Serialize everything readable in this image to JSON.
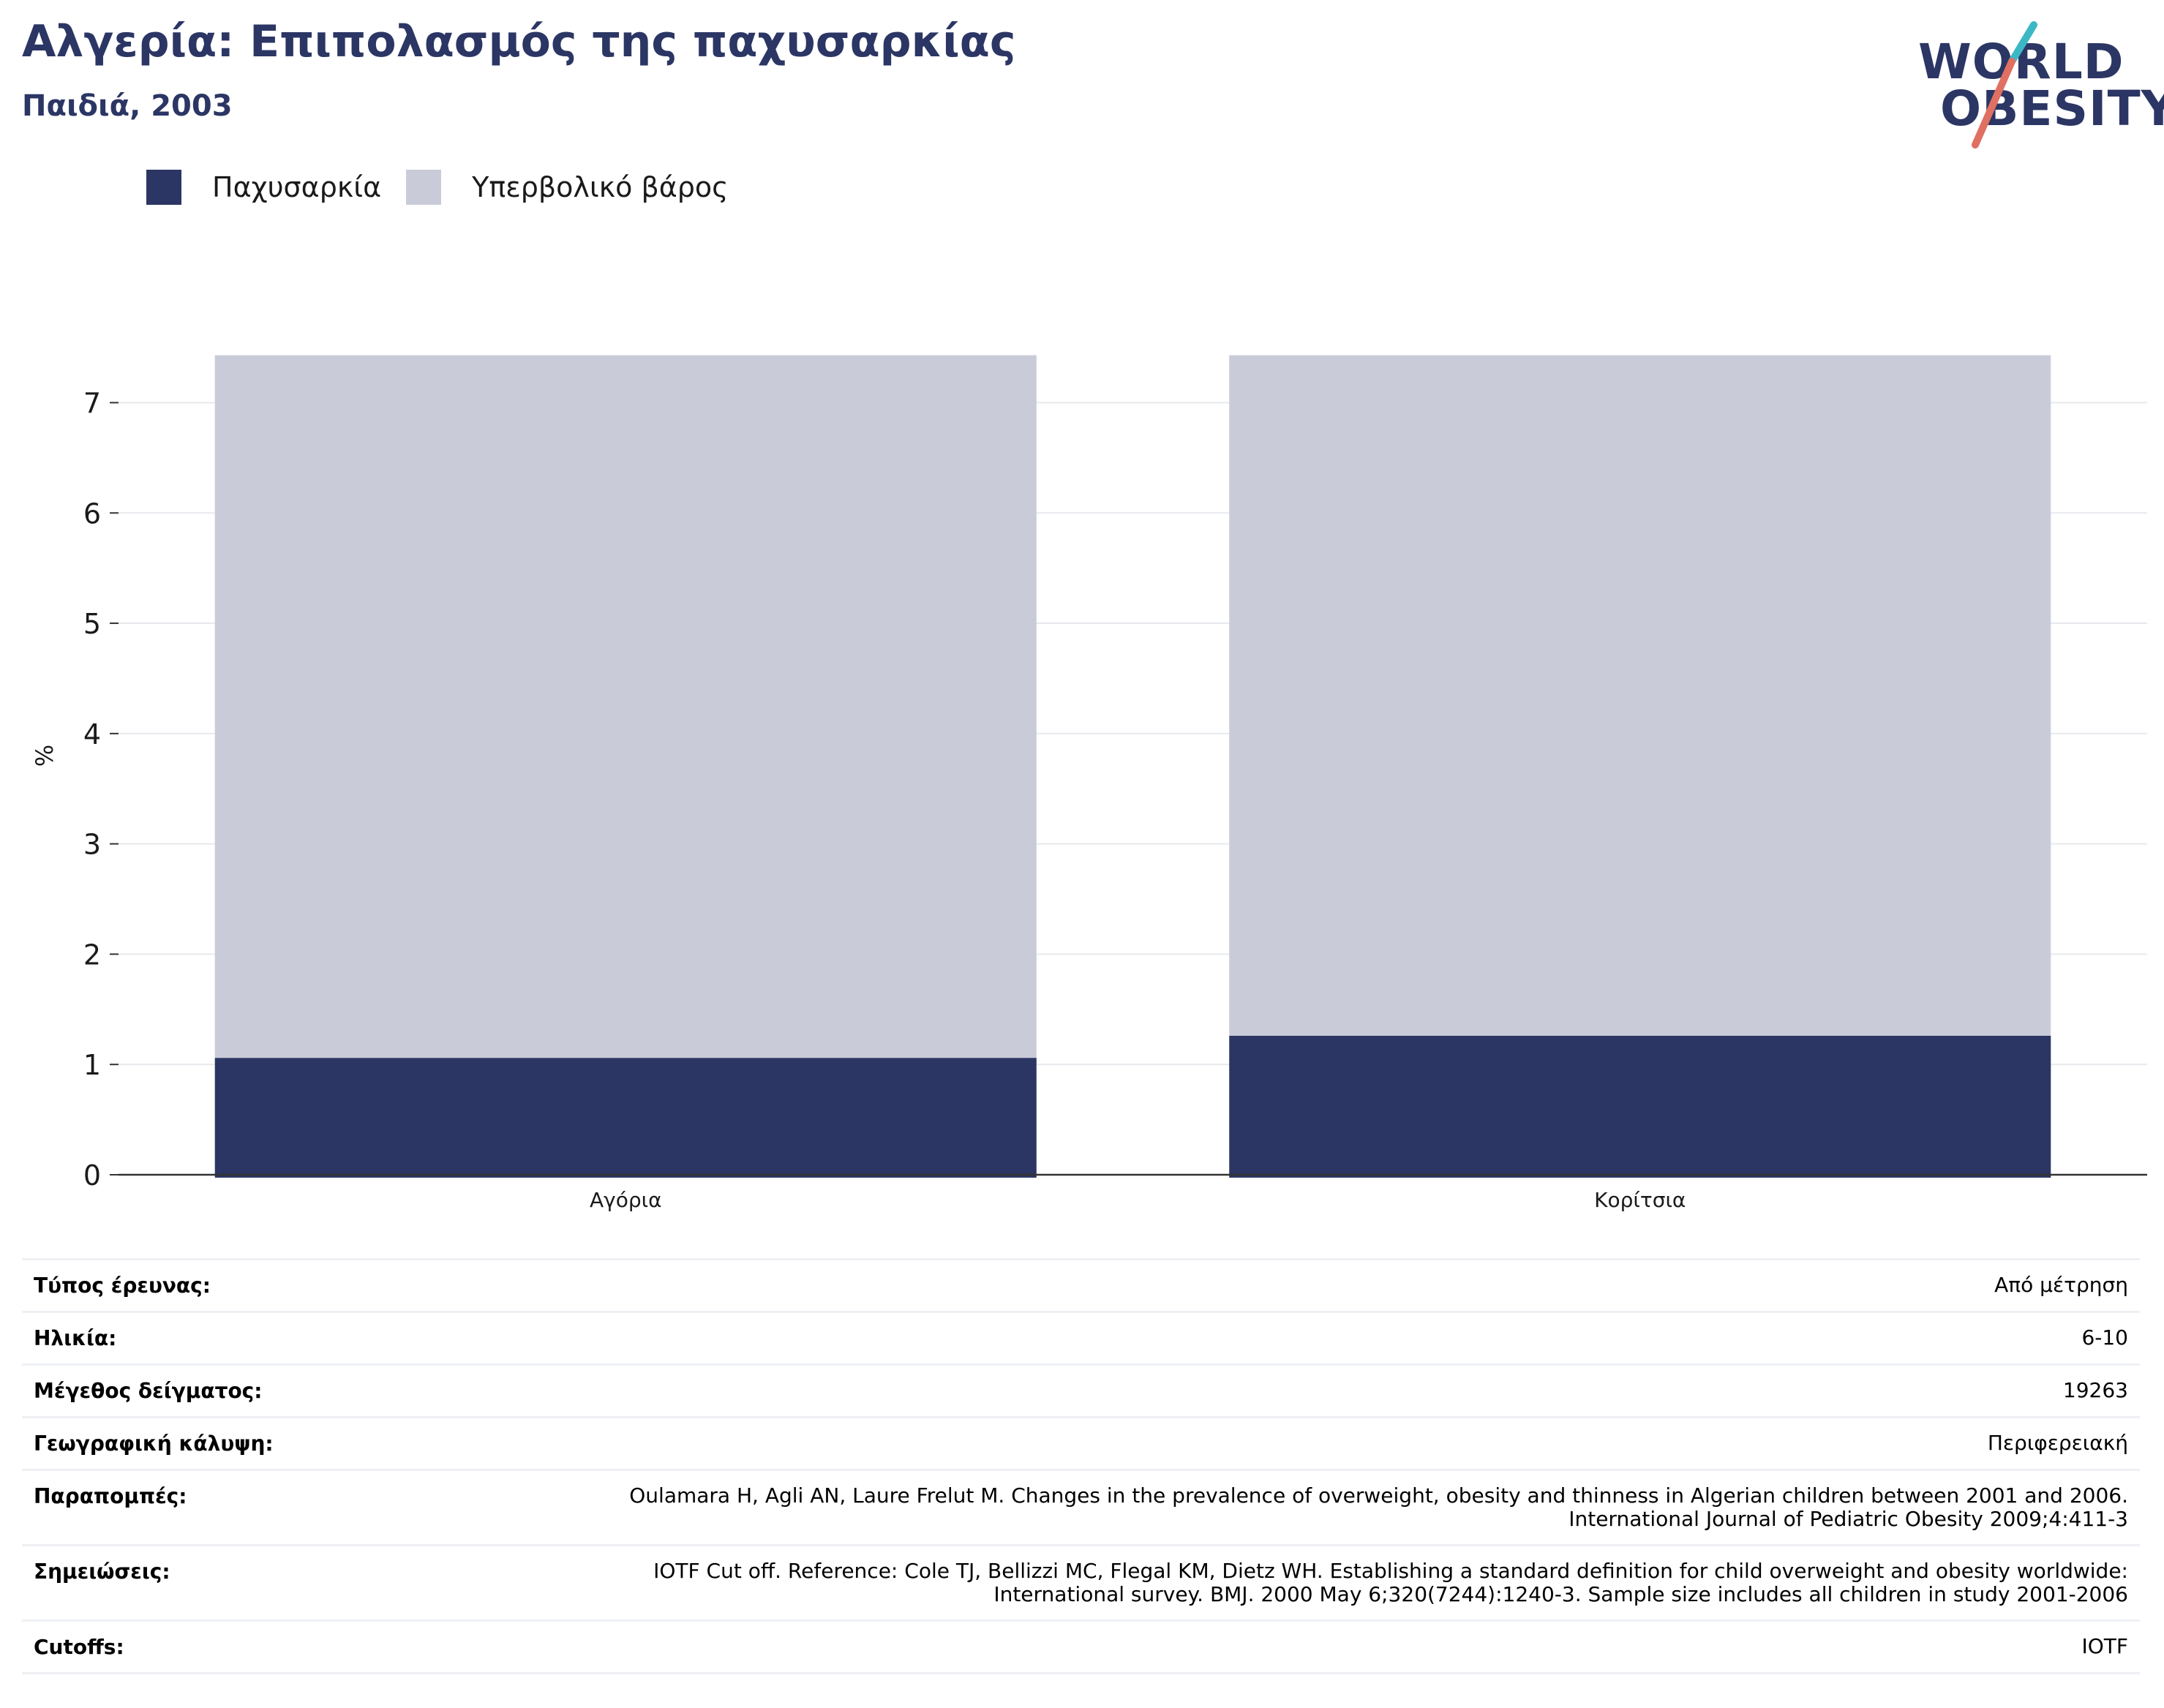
{
  "header": {
    "title": "Αλγερία: Επιπολασμός της παχυσαρκίας",
    "subtitle": "Παιδιά, 2003"
  },
  "logo": {
    "line1": "WORLD",
    "line2": "OBESITY",
    "colors": {
      "text": "#2b3664",
      "slash_top": "#3bb8c4",
      "slash_bottom": "#e07062"
    }
  },
  "legend": [
    {
      "label": "Παχυσαρκία",
      "color": "#2b3664"
    },
    {
      "label": "Υπερβολικό βάρος",
      "color": "#c9ccd8"
    }
  ],
  "chart_data": {
    "type": "bar",
    "stacked": true,
    "categories": [
      "Αγόρια",
      "Κορίτσια"
    ],
    "series": [
      {
        "name": "Παχυσαρκία",
        "color": "#2b3664",
        "values": [
          1.06,
          1.26
        ]
      },
      {
        "name": "Υπερβολικό βάρος",
        "color": "#c9ccd8",
        "values": [
          6.37,
          6.17
        ]
      }
    ],
    "ylabel": "%",
    "ylim": [
      0,
      7.6
    ],
    "yticks": [
      0,
      1,
      2,
      3,
      4,
      5,
      6,
      7
    ],
    "grid": true,
    "legend_position": "top-left"
  },
  "meta": [
    {
      "label": "Τύπος έρευνας:",
      "value": "Από μέτρηση"
    },
    {
      "label": "Ηλικία:",
      "value": "6-10"
    },
    {
      "label": "Μέγεθος δείγματος:",
      "value": "19263"
    },
    {
      "label": "Γεωγραφική κάλυψη:",
      "value": "Περιφερειακή"
    },
    {
      "label": "Παραπομπές:",
      "value": "Oulamara H, Agli AN, Laure Frelut M. Changes in the prevalence of overweight, obesity and thinness in Algerian children between 2001 and 2006. International Journal of Pediatric Obesity 2009;4:411-3"
    },
    {
      "label": "Σημειώσεις:",
      "value": "IOTF Cut off. Reference: Cole TJ, Bellizzi MC, Flegal KM, Dietz WH. Establishing a standard definition for child overweight and obesity worldwide: International survey. BMJ. 2000 May 6;320(7244):1240-3. Sample size includes all children in study 2001-2006"
    },
    {
      "label": "Cutoffs:",
      "value": "IOTF"
    }
  ]
}
